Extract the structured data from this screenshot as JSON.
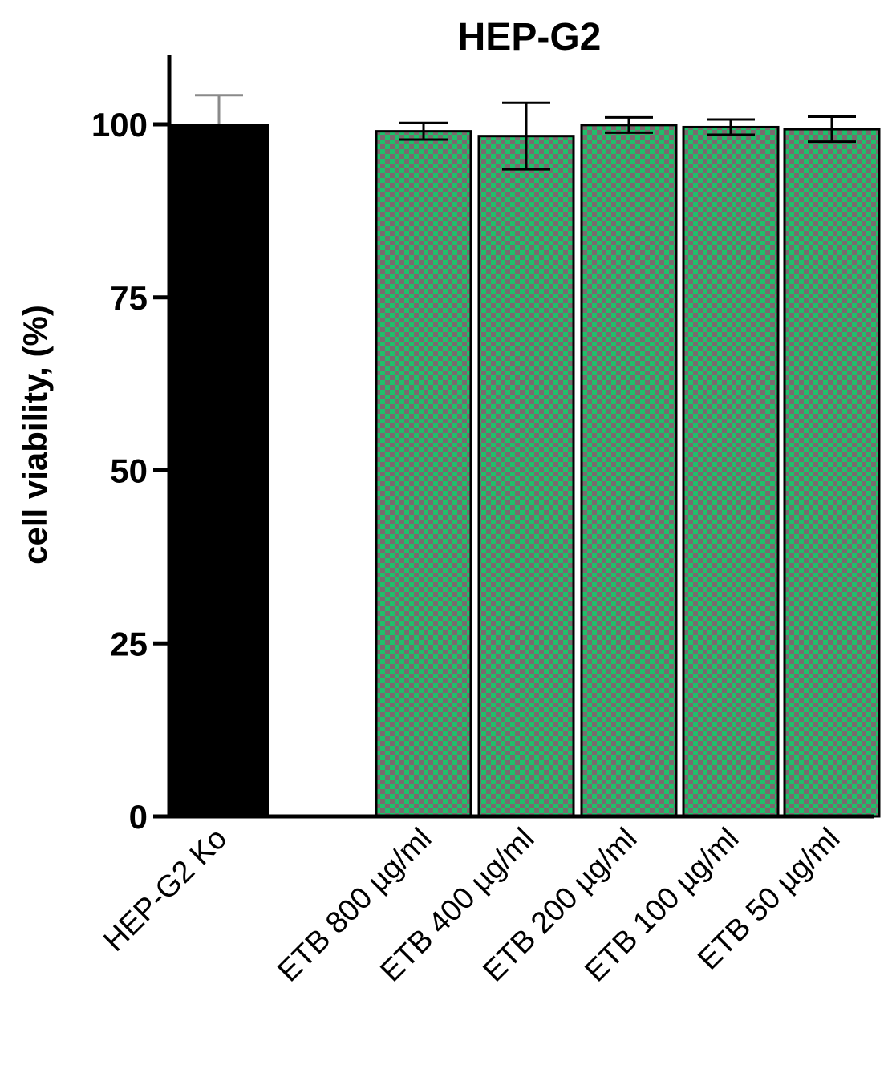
{
  "chart_data": {
    "type": "bar",
    "title": "HEP-G2",
    "xlabel": "",
    "ylabel": "cell viability, (%)",
    "ylim": [
      0,
      110
    ],
    "yticks": [
      0,
      25,
      50,
      75,
      100
    ],
    "grid": false,
    "legend": "none",
    "categories": [
      "HEP-G2 Ko",
      "ETB 800 µg/ml",
      "ETB 400 µg/ml",
      "ETB 200 µg/ml",
      "ETB 100 µg/ml",
      "ETB 50 µg/ml"
    ],
    "values": [
      100,
      99.0,
      98.3,
      99.9,
      99.6,
      99.3
    ],
    "errors": [
      4.2,
      1.2,
      4.8,
      1.1,
      1.1,
      1.8
    ],
    "styles": [
      "solid",
      "checker",
      "checker",
      "checker",
      "checker",
      "checker"
    ],
    "colors": {
      "control_fill": "#000000",
      "checker_a": "#1fbf6a",
      "checker_b": "#7a6a6e",
      "control_errorbar": "#8a8a8a",
      "errorbar": "#000000"
    }
  }
}
